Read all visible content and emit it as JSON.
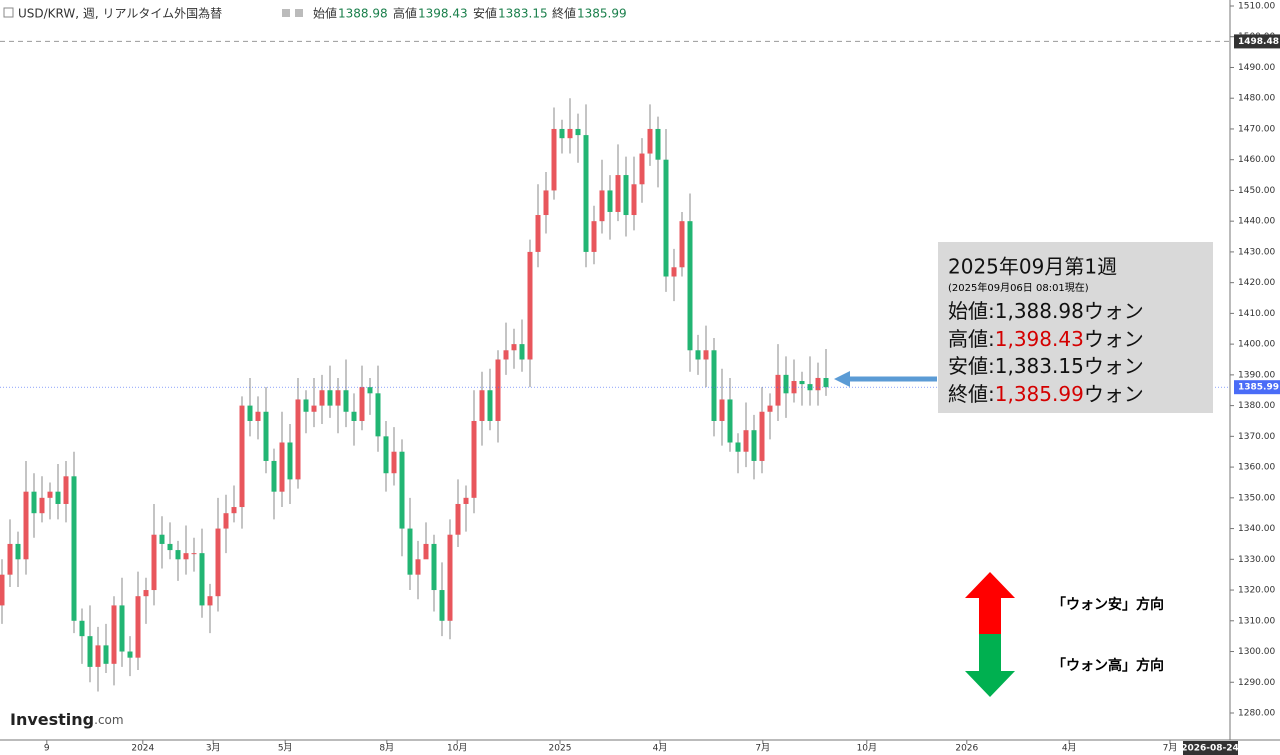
{
  "chart_data": {
    "type": "candlestick",
    "title": "USD/KRW, 週, リアルタイム外国為替",
    "header_labels": [
      "始値",
      "高値",
      "安値",
      "終値"
    ],
    "up_color": "#e8565c",
    "down_color": "#22b573",
    "candles": [
      [
        1315,
        1330,
        1309,
        1325
      ],
      [
        1325,
        1343,
        1321,
        1335
      ],
      [
        1335,
        1339,
        1321,
        1330
      ],
      [
        1330,
        1362,
        1325,
        1352
      ],
      [
        1352,
        1358,
        1337,
        1345
      ],
      [
        1345,
        1357,
        1342,
        1350
      ],
      [
        1350,
        1355,
        1343,
        1352
      ],
      [
        1352,
        1361,
        1343,
        1348
      ],
      [
        1348,
        1362,
        1342,
        1357
      ],
      [
        1357,
        1365,
        1306,
        1310
      ],
      [
        1310,
        1314,
        1296,
        1305
      ],
      [
        1305,
        1315,
        1290,
        1295
      ],
      [
        1295,
        1308,
        1287,
        1302
      ],
      [
        1302,
        1309,
        1293,
        1296
      ],
      [
        1296,
        1318,
        1289,
        1315
      ],
      [
        1315,
        1324,
        1295,
        1300
      ],
      [
        1300,
        1305,
        1292,
        1298
      ],
      [
        1298,
        1326,
        1294,
        1318
      ],
      [
        1318,
        1324,
        1309,
        1320
      ],
      [
        1320,
        1348,
        1315,
        1338
      ],
      [
        1338,
        1344,
        1327,
        1335
      ],
      [
        1335,
        1342,
        1330,
        1333
      ],
      [
        1333,
        1336,
        1323,
        1330
      ],
      [
        1330,
        1341,
        1325,
        1332
      ],
      [
        1332,
        1337,
        1326,
        1332
      ],
      [
        1332,
        1340,
        1311,
        1315
      ],
      [
        1315,
        1322,
        1306,
        1318
      ],
      [
        1318,
        1350,
        1313,
        1340
      ],
      [
        1340,
        1351,
        1332,
        1345
      ],
      [
        1345,
        1354,
        1342,
        1347
      ],
      [
        1347,
        1383,
        1340,
        1380
      ],
      [
        1380,
        1389,
        1370,
        1375
      ],
      [
        1375,
        1383,
        1369,
        1378
      ],
      [
        1378,
        1386,
        1358,
        1362
      ],
      [
        1362,
        1366,
        1343,
        1352
      ],
      [
        1352,
        1378,
        1347,
        1368
      ],
      [
        1368,
        1374,
        1348,
        1356
      ],
      [
        1356,
        1389,
        1353,
        1382
      ],
      [
        1382,
        1385,
        1371,
        1378
      ],
      [
        1378,
        1389,
        1373,
        1380
      ],
      [
        1380,
        1390,
        1374,
        1385
      ],
      [
        1385,
        1393,
        1376,
        1380
      ],
      [
        1380,
        1389,
        1371,
        1385
      ],
      [
        1385,
        1395,
        1373,
        1378
      ],
      [
        1378,
        1384,
        1367,
        1375
      ],
      [
        1375,
        1393,
        1372,
        1386
      ],
      [
        1386,
        1389,
        1377,
        1384
      ],
      [
        1384,
        1393,
        1365,
        1370
      ],
      [
        1370,
        1375,
        1352,
        1358
      ],
      [
        1358,
        1373,
        1354,
        1365
      ],
      [
        1365,
        1369,
        1331,
        1340
      ],
      [
        1340,
        1350,
        1320,
        1325
      ],
      [
        1325,
        1336,
        1317,
        1330
      ],
      [
        1330,
        1342,
        1332,
        1335
      ],
      [
        1335,
        1338,
        1313,
        1320
      ],
      [
        1320,
        1329,
        1305,
        1310
      ],
      [
        1310,
        1343,
        1304,
        1338
      ],
      [
        1338,
        1356,
        1334,
        1348
      ],
      [
        1348,
        1354,
        1339,
        1350
      ],
      [
        1350,
        1385,
        1345,
        1375
      ],
      [
        1375,
        1391,
        1367,
        1385
      ],
      [
        1385,
        1392,
        1372,
        1375
      ],
      [
        1375,
        1398,
        1368,
        1395
      ],
      [
        1395,
        1407,
        1390,
        1398
      ],
      [
        1398,
        1405,
        1392,
        1400
      ],
      [
        1400,
        1408,
        1391,
        1395
      ],
      [
        1395,
        1434,
        1386,
        1430
      ],
      [
        1430,
        1452,
        1425,
        1442
      ],
      [
        1442,
        1456,
        1436,
        1450
      ],
      [
        1450,
        1477,
        1447,
        1470
      ],
      [
        1470,
        1473,
        1462,
        1467
      ],
      [
        1467,
        1480,
        1462,
        1470
      ],
      [
        1470,
        1475,
        1459,
        1468
      ],
      [
        1468,
        1478,
        1425,
        1430
      ],
      [
        1430,
        1445,
        1426,
        1440
      ],
      [
        1440,
        1460,
        1436,
        1450
      ],
      [
        1450,
        1455,
        1434,
        1443
      ],
      [
        1443,
        1465,
        1440,
        1455
      ],
      [
        1455,
        1461,
        1435,
        1442
      ],
      [
        1442,
        1461,
        1437,
        1452
      ],
      [
        1452,
        1467,
        1446,
        1462
      ],
      [
        1462,
        1478,
        1458,
        1470
      ],
      [
        1470,
        1474,
        1451,
        1460
      ],
      [
        1460,
        1470,
        1417,
        1422
      ],
      [
        1422,
        1431,
        1414,
        1425
      ],
      [
        1425,
        1443,
        1422,
        1440
      ],
      [
        1440,
        1449,
        1391,
        1398
      ],
      [
        1398,
        1403,
        1390,
        1395
      ],
      [
        1395,
        1406,
        1386,
        1398
      ],
      [
        1398,
        1402,
        1370,
        1375
      ],
      [
        1375,
        1392,
        1367,
        1382
      ],
      [
        1382,
        1389,
        1365,
        1368
      ],
      [
        1368,
        1371,
        1358,
        1365
      ],
      [
        1365,
        1381,
        1360,
        1372
      ],
      [
        1372,
        1377,
        1356,
        1362
      ],
      [
        1362,
        1386,
        1358,
        1378
      ],
      [
        1378,
        1384,
        1369,
        1380
      ],
      [
        1380,
        1400,
        1375,
        1390
      ],
      [
        1390,
        1396,
        1376,
        1384
      ],
      [
        1384,
        1395,
        1381,
        1388
      ],
      [
        1388,
        1391,
        1380,
        1387
      ],
      [
        1387,
        1396,
        1380,
        1385
      ],
      [
        1385,
        1394,
        1380,
        1389
      ],
      [
        1388.98,
        1398.43,
        1383.15,
        1385.99
      ]
    ],
    "xlim": [
      -0.25,
      153.5
    ],
    "xticks": [
      {
        "value": 5.6,
        "label": "9"
      },
      {
        "value": 17.6,
        "label": "2024"
      },
      {
        "value": 26.4,
        "label": "3月"
      },
      {
        "value": 35.4,
        "label": "5月"
      },
      {
        "value": 48.1,
        "label": "8月"
      },
      {
        "value": 56.9,
        "label": "10月"
      },
      {
        "value": 69.75,
        "label": "2025"
      },
      {
        "value": 82.25,
        "label": "4月"
      },
      {
        "value": 95.1,
        "label": "7月"
      },
      {
        "value": 108.1,
        "label": "10月"
      },
      {
        "value": 120.6,
        "label": "2026"
      },
      {
        "value": 133.4,
        "label": "4月"
      },
      {
        "value": 146,
        "label": "7月"
      }
    ],
    "x_end_label": "2026-08-24",
    "ylim": [
      1280,
      1510
    ],
    "yticks": [
      {
        "value": 1280,
        "label": "1280.00"
      },
      {
        "value": 1290,
        "label": "1290.00"
      },
      {
        "value": 1300,
        "label": "1300.00"
      },
      {
        "value": 1310,
        "label": "1310.00"
      },
      {
        "value": 1320,
        "label": "1320.00"
      },
      {
        "value": 1330,
        "label": "1330.00"
      },
      {
        "value": 1340,
        "label": "1340.00"
      },
      {
        "value": 1350,
        "label": "1350.00"
      },
      {
        "value": 1360,
        "label": "1360.00"
      },
      {
        "value": 1370,
        "label": "1370.00"
      },
      {
        "value": 1380,
        "label": "1380.00"
      },
      {
        "value": 1390,
        "label": "1390.00"
      },
      {
        "value": 1400,
        "label": "1400.00"
      },
      {
        "value": 1410,
        "label": "1410.00"
      },
      {
        "value": 1420,
        "label": "1420.00"
      },
      {
        "value": 1430,
        "label": "1430.00"
      },
      {
        "value": 1440,
        "label": "1440.00"
      },
      {
        "value": 1450,
        "label": "1450.00"
      },
      {
        "value": 1460,
        "label": "1460.00"
      },
      {
        "value": 1470,
        "label": "1470.00"
      },
      {
        "value": 1480,
        "label": "1480.00"
      },
      {
        "value": 1490,
        "label": "1490.00"
      },
      {
        "value": 1500,
        "label": "1500.00"
      },
      {
        "value": 1510,
        "label": "1510.00"
      }
    ],
    "ref_line": 1498.48,
    "info_box": {
      "title": "2025年09月第1週",
      "note": "(2025年09月06日 08:01現在)",
      "rows": [
        {
          "label": "始値:",
          "value": "1,388.98",
          "unit": "ウォン"
        },
        {
          "label": "高値:",
          "value": "1,398.43",
          "unit": "ウォン"
        },
        {
          "label": "安値:",
          "value": "1,383.15",
          "unit": "ウォン"
        },
        {
          "label": "終値:",
          "value": "1,385.99",
          "unit": "ウォン"
        }
      ]
    },
    "legend": {
      "up": "「ウォン安」方向",
      "down": "「ウォン高」方向"
    },
    "logo": {
      "brand": "Investing",
      "suffix": ".com"
    }
  }
}
